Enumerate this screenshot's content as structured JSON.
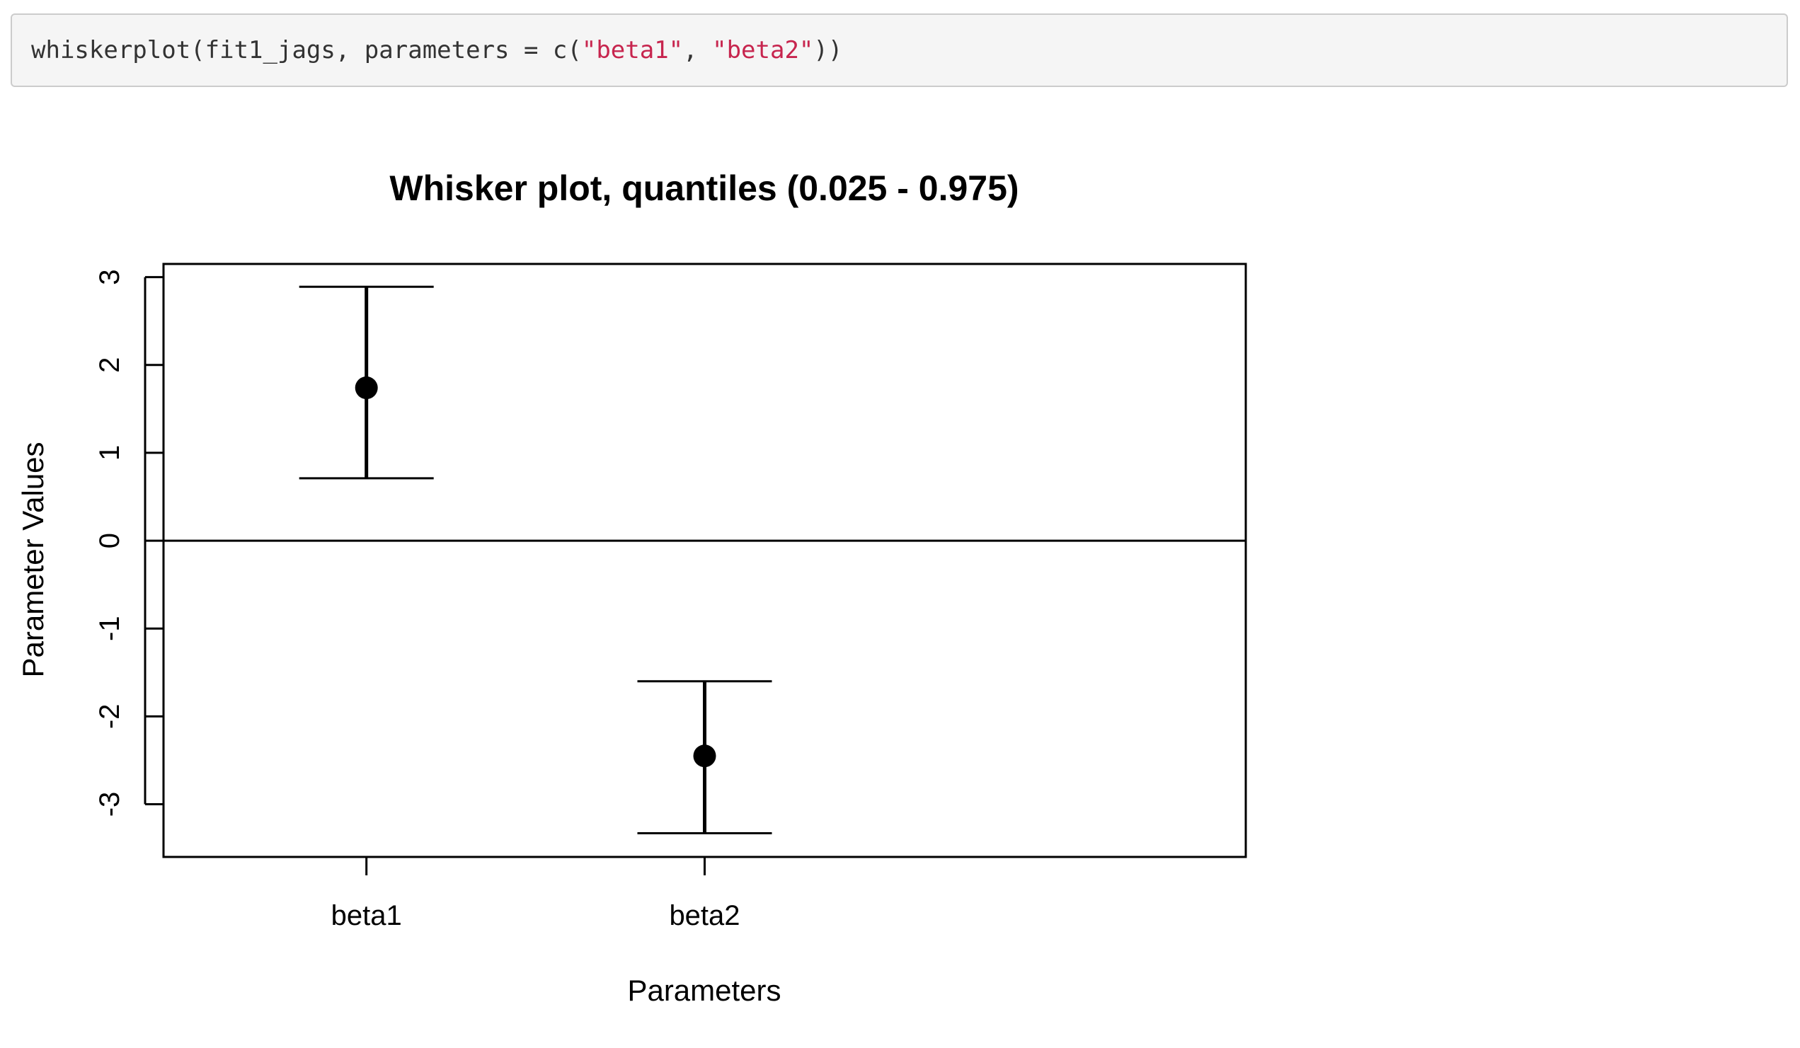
{
  "code": {
    "func": "whiskerplot",
    "open_args": "(fit1_jags, parameters = c(",
    "arg1": "\"beta1\"",
    "sep": ", ",
    "arg2": "\"beta2\"",
    "close": "))"
  },
  "chart_data": {
    "type": "whisker",
    "title": "Whisker plot, quantiles (0.025 - 0.975)",
    "xlabel": "Parameters",
    "ylabel": "Parameter Values",
    "categories": [
      "beta1",
      "beta2"
    ],
    "series": [
      {
        "values": [
          1.74,
          -2.45
        ],
        "lower": [
          0.71,
          -3.33
        ],
        "upper": [
          2.89,
          -1.6
        ]
      }
    ],
    "xlim": [
      0.4,
      3.6
    ],
    "ylim": [
      -3.6,
      3.15
    ],
    "yticks": [
      3,
      2,
      1,
      0,
      -1,
      -2,
      -3
    ],
    "ytick_labels": [
      "3",
      "2",
      "1",
      "0",
      "-1",
      "-2",
      "-3"
    ],
    "reference_line": 0,
    "grid": false,
    "legend": "none",
    "colors": {
      "line": "#000000",
      "code_string": "#c7254e",
      "code_text": "#333333",
      "code_background": "#f5f5f5"
    }
  }
}
